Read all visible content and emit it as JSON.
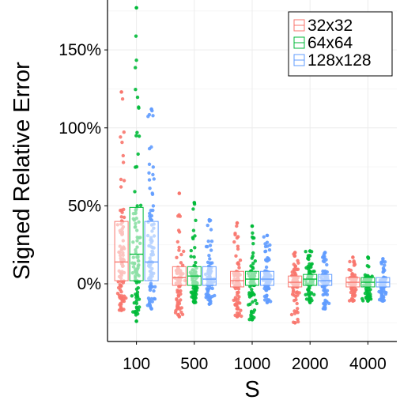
{
  "chart_data": {
    "type": "boxplot",
    "title": "",
    "xlabel": "S",
    "ylabel": "Signed Relative Error",
    "categories": [
      "100",
      "500",
      "1000",
      "2000",
      "4000"
    ],
    "y_ticks": [
      {
        "value": 0,
        "label": "0%"
      },
      {
        "value": 50,
        "label": "50%"
      },
      {
        "value": 100,
        "label": "100%"
      },
      {
        "value": 150,
        "label": "150%"
      }
    ],
    "ylim": [
      -37,
      182
    ],
    "grid": true,
    "legend_position": "top-right",
    "series": [
      {
        "name": "32x32",
        "color": "#f8766d",
        "boxes": [
          {
            "min": -17,
            "q1": 2,
            "median": 14,
            "q3": 40,
            "max": 123
          },
          {
            "min": -21,
            "q1": -1,
            "median": 4,
            "q3": 11,
            "max": 58
          },
          {
            "min": -21,
            "q1": -2,
            "median": 2,
            "q3": 8,
            "max": 39
          },
          {
            "min": -25,
            "q1": -2,
            "median": 1,
            "q3": 5,
            "max": 20
          },
          {
            "min": -11,
            "q1": -2,
            "median": 1,
            "q3": 4,
            "max": 17
          }
        ]
      },
      {
        "name": "64x64",
        "color": "#00ba38",
        "boxes": [
          {
            "min": -24,
            "q1": 2,
            "median": 19,
            "q3": 49,
            "max": 177
          },
          {
            "min": -12,
            "q1": -1,
            "median": 5,
            "q3": 11,
            "max": 52
          },
          {
            "min": -23,
            "q1": -1,
            "median": 3,
            "q3": 8,
            "max": 37
          },
          {
            "min": -12,
            "q1": -1,
            "median": 3,
            "q3": 6,
            "max": 21
          },
          {
            "min": -11,
            "q1": -2,
            "median": 1,
            "q3": 4,
            "max": 17
          }
        ]
      },
      {
        "name": "128x128",
        "color": "#619cff",
        "boxes": [
          {
            "min": -16,
            "q1": 2,
            "median": 14,
            "q3": 40,
            "max": 112
          },
          {
            "min": -13,
            "q1": -1,
            "median": 3,
            "q3": 11,
            "max": 41
          },
          {
            "min": -12,
            "q1": -1,
            "median": 3,
            "q3": 8,
            "max": 31
          },
          {
            "min": -16,
            "q1": -1,
            "median": 2,
            "q3": 6,
            "max": 20
          },
          {
            "min": -11,
            "q1": -2,
            "median": 1,
            "q3": 4,
            "max": 16
          }
        ]
      }
    ]
  }
}
